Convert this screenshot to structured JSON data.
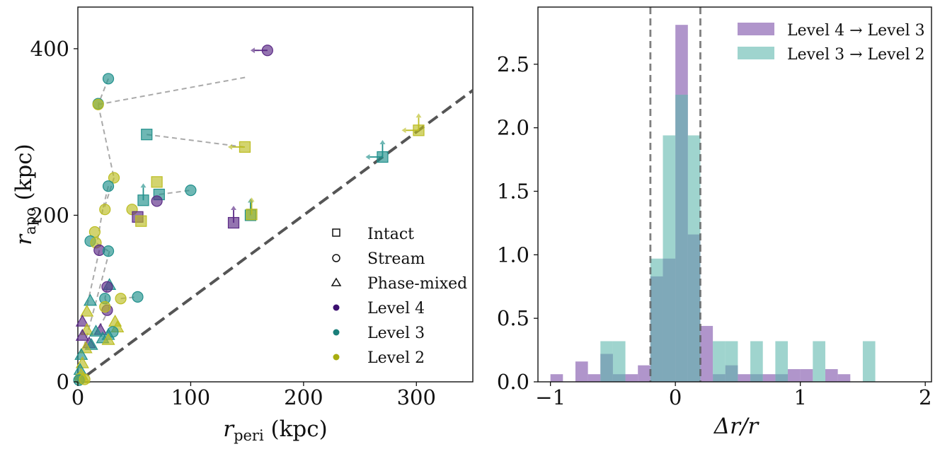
{
  "chart_data": [
    {
      "type": "scatter",
      "xlabel_main": "r",
      "xlabel_sub": "peri",
      "xlabel_unit": " (kpc)",
      "ylabel_main": "r",
      "ylabel_sub": "apo",
      "ylabel_unit": " (kpc)",
      "xlim": [
        0,
        350
      ],
      "ylim": [
        0,
        450
      ],
      "xticks": [
        0,
        100,
        200,
        300
      ],
      "yticks": [
        0,
        200,
        400
      ],
      "reference_line": {
        "slope": 1,
        "style": "dashed",
        "color": "#555555"
      },
      "colors": {
        "level4": "#5b2a86",
        "level3": "#21908c",
        "level2": "#bcbd22",
        "link": "#aaaaaa"
      },
      "legend": {
        "position": "lower-right",
        "markers": [
          {
            "label": "Intact",
            "shape": "square"
          },
          {
            "label": "Stream",
            "shape": "circle"
          },
          {
            "label": "Phase-mixed",
            "shape": "triangle"
          }
        ],
        "levels": [
          {
            "label": "Level 4",
            "color": "#3b0f70"
          },
          {
            "label": "Level 3",
            "color": "#1a7f7a"
          },
          {
            "label": "Level 2",
            "color": "#a8ad0f"
          }
        ]
      },
      "links": [
        [
          [
            168,
            398
          ],
          [
            155,
            398
          ]
        ],
        [
          [
            27,
            364
          ],
          [
            18,
            333
          ]
        ],
        [
          [
            18,
            333
          ],
          [
            32,
            245
          ]
        ],
        [
          [
            18,
            333
          ],
          [
            150,
            366
          ]
        ],
        [
          [
            32,
            245
          ],
          [
            23,
            207
          ]
        ],
        [
          [
            61,
            297
          ],
          [
            147,
            282
          ]
        ],
        [
          [
            72,
            225
          ],
          [
            100,
            230
          ]
        ],
        [
          [
            27,
            235
          ],
          [
            22,
            207
          ]
        ],
        [
          [
            22,
            207
          ],
          [
            17,
            166
          ]
        ],
        [
          [
            17,
            166
          ],
          [
            27,
            157
          ]
        ],
        [
          [
            28,
            157
          ],
          [
            5,
            40
          ]
        ],
        [
          [
            26,
            114
          ],
          [
            24,
            100
          ]
        ],
        [
          [
            24,
            100
          ],
          [
            28,
            88
          ]
        ],
        [
          [
            28,
            88
          ],
          [
            17,
            60
          ]
        ],
        [
          [
            38,
            100
          ],
          [
            53,
            102
          ]
        ],
        [
          [
            19,
            158
          ],
          [
            8,
            90
          ]
        ]
      ],
      "points": [
        {
          "x": 168,
          "y": 398,
          "level": 4,
          "shape": "circle",
          "arrow": "left"
        },
        {
          "x": 27,
          "y": 364,
          "level": 3,
          "shape": "circle"
        },
        {
          "x": 18,
          "y": 334,
          "level": 3,
          "shape": "circle"
        },
        {
          "x": 18,
          "y": 333,
          "level": 2,
          "shape": "circle"
        },
        {
          "x": 61,
          "y": 297,
          "level": 3,
          "shape": "square"
        },
        {
          "x": 148,
          "y": 282,
          "level": 2,
          "shape": "square",
          "arrow": "left"
        },
        {
          "x": 302,
          "y": 302,
          "level": 2,
          "shape": "square",
          "arrow": "left-up"
        },
        {
          "x": 270,
          "y": 270,
          "level": 3,
          "shape": "square",
          "arrow": "left-up"
        },
        {
          "x": 32,
          "y": 245,
          "level": 2,
          "shape": "circle"
        },
        {
          "x": 70,
          "y": 240,
          "level": 2,
          "shape": "square"
        },
        {
          "x": 27,
          "y": 235,
          "level": 3,
          "shape": "circle"
        },
        {
          "x": 100,
          "y": 230,
          "level": 3,
          "shape": "circle"
        },
        {
          "x": 72,
          "y": 225,
          "level": 3,
          "shape": "square"
        },
        {
          "x": 58,
          "y": 218,
          "level": 3,
          "shape": "square",
          "arrow": "up"
        },
        {
          "x": 70,
          "y": 217,
          "level": 4,
          "shape": "circle"
        },
        {
          "x": 24,
          "y": 207,
          "level": 2,
          "shape": "circle"
        },
        {
          "x": 48,
          "y": 207,
          "level": 2,
          "shape": "circle"
        },
        {
          "x": 53,
          "y": 198,
          "level": 4,
          "shape": "square"
        },
        {
          "x": 56,
          "y": 193,
          "level": 2,
          "shape": "square"
        },
        {
          "x": 153,
          "y": 200,
          "level": 3,
          "shape": "square",
          "arrow": "up"
        },
        {
          "x": 154,
          "y": 201,
          "level": 2,
          "shape": "square",
          "arrow": "up"
        },
        {
          "x": 138,
          "y": 191,
          "level": 4,
          "shape": "square",
          "arrow": "up"
        },
        {
          "x": 15,
          "y": 180,
          "level": 2,
          "shape": "circle"
        },
        {
          "x": 11,
          "y": 169,
          "level": 3,
          "shape": "circle"
        },
        {
          "x": 16,
          "y": 167,
          "level": 2,
          "shape": "circle"
        },
        {
          "x": 19,
          "y": 158,
          "level": 4,
          "shape": "circle"
        },
        {
          "x": 27,
          "y": 157,
          "level": 3,
          "shape": "circle"
        },
        {
          "x": 28,
          "y": 116,
          "level": 3,
          "shape": "triangle"
        },
        {
          "x": 26,
          "y": 114,
          "level": 4,
          "shape": "circle"
        },
        {
          "x": 24,
          "y": 100,
          "level": 3,
          "shape": "circle"
        },
        {
          "x": 38,
          "y": 100,
          "level": 2,
          "shape": "circle"
        },
        {
          "x": 53,
          "y": 102,
          "level": 3,
          "shape": "circle"
        },
        {
          "x": 11,
          "y": 97,
          "level": 3,
          "shape": "triangle"
        },
        {
          "x": 26,
          "y": 86,
          "level": 4,
          "shape": "circle"
        },
        {
          "x": 24,
          "y": 90,
          "level": 2,
          "shape": "circle"
        },
        {
          "x": 8,
          "y": 84,
          "level": 2,
          "shape": "triangle"
        },
        {
          "x": 4,
          "y": 72,
          "level": 4,
          "shape": "triangle"
        },
        {
          "x": 33,
          "y": 72,
          "level": 2,
          "shape": "triangle"
        },
        {
          "x": 35,
          "y": 65,
          "level": 2,
          "shape": "triangle"
        },
        {
          "x": 8,
          "y": 62,
          "level": 2,
          "shape": "triangle"
        },
        {
          "x": 20,
          "y": 62,
          "level": 4,
          "shape": "triangle"
        },
        {
          "x": 16,
          "y": 60,
          "level": 3,
          "shape": "triangle"
        },
        {
          "x": 31,
          "y": 60,
          "level": 3,
          "shape": "circle"
        },
        {
          "x": 27,
          "y": 56,
          "level": 3,
          "shape": "triangle"
        },
        {
          "x": 4,
          "y": 55,
          "level": 4,
          "shape": "triangle"
        },
        {
          "x": 22,
          "y": 52,
          "level": 3,
          "shape": "triangle"
        },
        {
          "x": 27,
          "y": 50,
          "level": 2,
          "shape": "triangle"
        },
        {
          "x": 10,
          "y": 46,
          "level": 4,
          "shape": "triangle"
        },
        {
          "x": 12,
          "y": 44,
          "level": 3,
          "shape": "triangle"
        },
        {
          "x": 7,
          "y": 40,
          "level": 2,
          "shape": "triangle"
        },
        {
          "x": 3,
          "y": 32,
          "level": 3,
          "shape": "triangle"
        },
        {
          "x": 4,
          "y": 22,
          "level": 2,
          "shape": "triangle"
        },
        {
          "x": 2,
          "y": 14,
          "level": 3,
          "shape": "triangle"
        },
        {
          "x": 3,
          "y": 8,
          "level": 2,
          "shape": "triangle"
        },
        {
          "x": 5,
          "y": 4,
          "level": 2,
          "shape": "triangle"
        },
        {
          "x": 2,
          "y": 4,
          "level": 2,
          "shape": "circle"
        },
        {
          "x": 1,
          "y": 2,
          "level": 3,
          "shape": "circle"
        },
        {
          "x": 6,
          "y": 3,
          "level": 2,
          "shape": "circle"
        }
      ]
    },
    {
      "type": "histogram",
      "xlabel": "Δr/r",
      "xlim": [
        -1.1,
        2.05
      ],
      "ylim": [
        0,
        2.95
      ],
      "xticks": [
        -1,
        0,
        1,
        2
      ],
      "yticks": [
        0.0,
        0.5,
        1.0,
        1.5,
        2.0,
        2.5
      ],
      "bin_width": 0.1,
      "vlines": [
        -0.2,
        0.2
      ],
      "series": [
        {
          "name": "Level 4 → Level 3",
          "color": "#7b4fa8",
          "alpha": 0.6,
          "bins": [
            {
              "x": -1.0,
              "h": 0.06
            },
            {
              "x": -0.8,
              "h": 0.16
            },
            {
              "x": -0.7,
              "h": 0.06
            },
            {
              "x": -0.6,
              "h": 0.22
            },
            {
              "x": -0.5,
              "h": 0.06
            },
            {
              "x": -0.4,
              "h": 0.06
            },
            {
              "x": -0.3,
              "h": 0.13
            },
            {
              "x": -0.2,
              "h": 0.83
            },
            {
              "x": -0.1,
              "h": 0.97
            },
            {
              "x": 0.0,
              "h": 2.81
            },
            {
              "x": 0.1,
              "h": 1.16
            },
            {
              "x": 0.2,
              "h": 0.44
            },
            {
              "x": 0.3,
              "h": 0.06
            },
            {
              "x": 0.4,
              "h": 0.13
            },
            {
              "x": 0.5,
              "h": 0.06
            },
            {
              "x": 0.6,
              "h": 0.06
            },
            {
              "x": 0.7,
              "h": 0.06
            },
            {
              "x": 0.8,
              "h": 0.06
            },
            {
              "x": 0.9,
              "h": 0.1
            },
            {
              "x": 1.0,
              "h": 0.1
            },
            {
              "x": 1.2,
              "h": 0.1
            },
            {
              "x": 1.3,
              "h": 0.06
            }
          ]
        },
        {
          "name": "Level 3 → Level 2",
          "color": "#5fb8ad",
          "alpha": 0.6,
          "bins": [
            {
              "x": -0.6,
              "h": 0.32
            },
            {
              "x": -0.5,
              "h": 0.32
            },
            {
              "x": -0.2,
              "h": 0.97
            },
            {
              "x": -0.1,
              "h": 1.94
            },
            {
              "x": 0.0,
              "h": 2.26
            },
            {
              "x": 0.1,
              "h": 1.94
            },
            {
              "x": 0.3,
              "h": 0.32
            },
            {
              "x": 0.4,
              "h": 0.32
            },
            {
              "x": 0.6,
              "h": 0.32
            },
            {
              "x": 0.8,
              "h": 0.32
            },
            {
              "x": 1.1,
              "h": 0.32
            },
            {
              "x": 1.5,
              "h": 0.32
            }
          ]
        }
      ]
    }
  ]
}
